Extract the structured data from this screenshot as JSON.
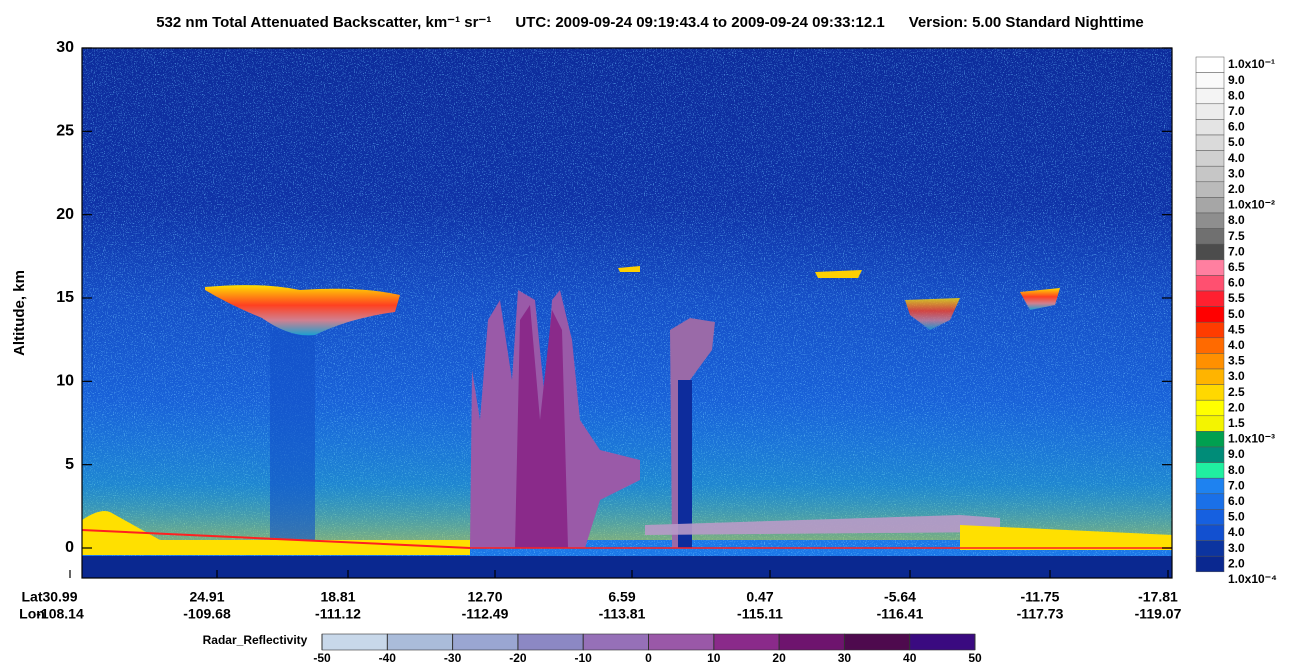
{
  "chart_data": {
    "type": "curtain",
    "title": "532 nm Total Attenuated Backscatter, km⁻¹ sr⁻¹",
    "utc": "UTC:  2009-09-24 09:19:43.4  to  2009-09-24 09:33:12.1",
    "version": "Version: 5.00  Standard  Nighttime",
    "ylabel": "Altitude, km",
    "ylim": [
      -1.8,
      30
    ],
    "yticks": [
      0,
      5,
      10,
      15,
      20,
      25,
      30
    ],
    "lat_label": "Lat",
    "lon_label": "Lon",
    "lat": [
      "30.99",
      "24.91",
      "18.81",
      "12.70",
      "6.59",
      "0.47",
      "-5.64",
      "-11.75",
      "-17.81"
    ],
    "lon": [
      "-108.14",
      "-109.68",
      "-111.12",
      "-112.49",
      "-113.81",
      "-115.11",
      "-116.41",
      "-117.73",
      "-119.07"
    ],
    "backscatter_labels": [
      "1.0x10⁻¹",
      "9.0",
      "8.0",
      "7.0",
      "6.0",
      "5.0",
      "4.0",
      "3.0",
      "2.0",
      "1.0x10⁻²",
      "8.0",
      "7.5",
      "7.0",
      "6.5",
      "6.0",
      "5.5",
      "5.0",
      "4.5",
      "4.0",
      "3.5",
      "3.0",
      "2.5",
      "2.0",
      "1.5",
      "1.0x10⁻³",
      "9.0",
      "8.0",
      "7.0",
      "6.0",
      "5.0",
      "4.0",
      "3.0",
      "2.0",
      "1.0x10⁻⁴"
    ],
    "backscatter_colors": [
      "#ffffff",
      "#fafafa",
      "#f4f4f4",
      "#ececec",
      "#e4e4e4",
      "#dadada",
      "#d0d0d0",
      "#c6c6c6",
      "#bababa",
      "#a6a6a6",
      "#8e8e8e",
      "#707070",
      "#4c4c4c",
      "#ff7fa0",
      "#ff5070",
      "#ff2030",
      "#ff0000",
      "#ff3c00",
      "#ff6a00",
      "#ff9000",
      "#ffb400",
      "#ffd800",
      "#ffff00",
      "#f4f400",
      "#00a050",
      "#008c78",
      "#20f0a0",
      "#1e82f0",
      "#1a70e8",
      "#1660e0",
      "#1250d0",
      "#0c34a0",
      "#0a2890"
    ],
    "radar_label": "Radar_Reflectivity",
    "radar_ticks": [
      -50,
      -40,
      -30,
      -20,
      -10,
      0,
      10,
      20,
      30,
      40,
      50
    ],
    "radar_colors": [
      "#c8d8ea",
      "#aabcda",
      "#9aa6d2",
      "#8c88c4",
      "#9670b8",
      "#9a58a8",
      "#8a2a8a",
      "#6e146e",
      "#4e0a4e",
      "#3a0a80"
    ]
  }
}
